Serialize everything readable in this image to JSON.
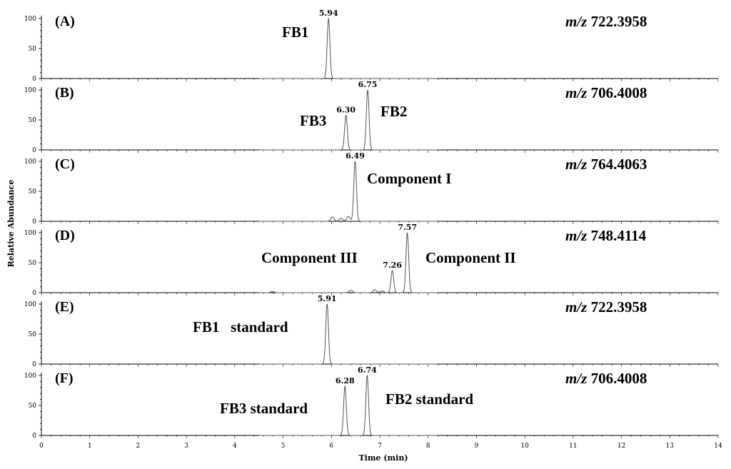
{
  "chart_data": {
    "type": "line",
    "xlabel": "Time (min)",
    "ylabel": "Relative Abundance",
    "xlim": [
      0,
      14
    ],
    "ylim": [
      0,
      100
    ],
    "x_ticks": [
      "0",
      "1",
      "2",
      "3",
      "4",
      "5",
      "6",
      "7",
      "8",
      "9",
      "10",
      "11",
      "12",
      "13",
      "14"
    ],
    "y_ticks": [
      "0",
      "50",
      "100"
    ],
    "panels": [
      {
        "label": "(A)",
        "mz_prefix": "m/z",
        "mz_value": "722.3958",
        "peaks": [
          {
            "rt": 5.94,
            "height": 100,
            "rt_label": "5.94",
            "name": "FB1"
          }
        ],
        "minor_peaks": []
      },
      {
        "label": "(B)",
        "mz_prefix": "m/z",
        "mz_value": "706.4008",
        "peaks": [
          {
            "rt": 6.3,
            "height": 58,
            "rt_label": "6.30",
            "name": "FB3"
          },
          {
            "rt": 6.75,
            "height": 100,
            "rt_label": "6.75",
            "name": "FB2"
          }
        ],
        "minor_peaks": []
      },
      {
        "label": "(C)",
        "mz_prefix": "m/z",
        "mz_value": "764.4063",
        "peaks": [
          {
            "rt": 6.49,
            "height": 100,
            "rt_label": "6.49",
            "name": "Component I"
          }
        ],
        "minor_peaks": [
          {
            "rt": 6.02,
            "height": 7
          },
          {
            "rt": 6.2,
            "height": 5
          },
          {
            "rt": 6.35,
            "height": 8
          }
        ]
      },
      {
        "label": "(D)",
        "mz_prefix": "m/z",
        "mz_value": "748.4114",
        "peaks": [
          {
            "rt": 7.26,
            "height": 37,
            "rt_label": "7.26",
            "name": "Component III"
          },
          {
            "rt": 7.57,
            "height": 100,
            "rt_label": "7.57",
            "name": "Component II"
          }
        ],
        "minor_peaks": [
          {
            "rt": 4.78,
            "height": 2
          },
          {
            "rt": 6.4,
            "height": 4
          },
          {
            "rt": 6.9,
            "height": 5
          },
          {
            "rt": 7.05,
            "height": 3
          }
        ]
      },
      {
        "label": "(E)",
        "mz_prefix": "m/z",
        "mz_value": "722.3958",
        "peaks": [
          {
            "rt": 5.91,
            "height": 100,
            "rt_label": "5.91",
            "name": "FB1   standard"
          }
        ],
        "minor_peaks": []
      },
      {
        "label": "(F)",
        "mz_prefix": "m/z",
        "mz_value": "706.4008",
        "peaks": [
          {
            "rt": 6.28,
            "height": 82,
            "rt_label": "6.28",
            "name": "FB3 standard"
          },
          {
            "rt": 6.74,
            "height": 100,
            "rt_label": "6.74",
            "name": "FB2 standard"
          }
        ],
        "minor_peaks": []
      }
    ]
  }
}
